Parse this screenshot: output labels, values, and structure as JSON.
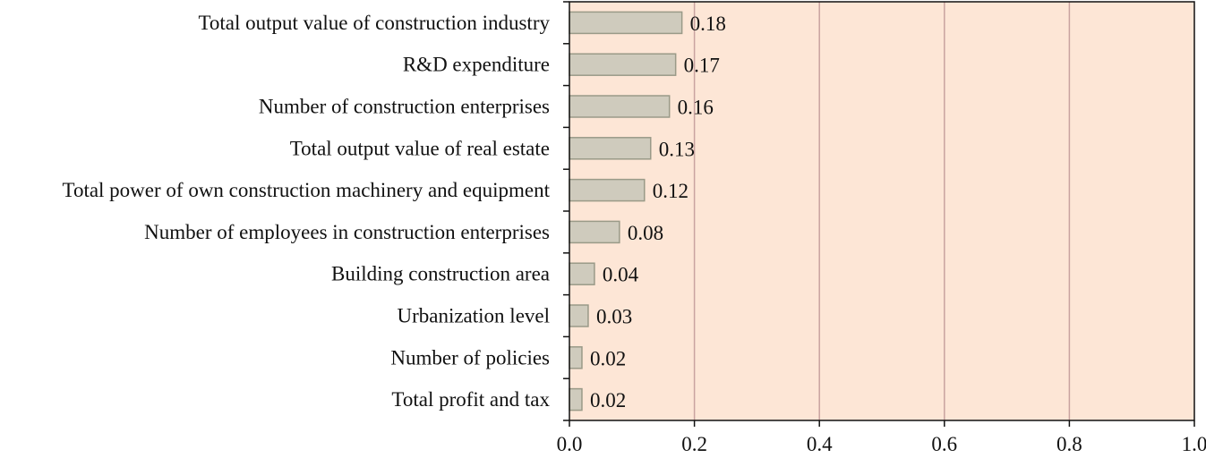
{
  "chart_data": {
    "type": "bar",
    "orientation": "horizontal",
    "title": "",
    "xlabel": "",
    "ylabel": "",
    "categories": [
      "Total output value of construction industry",
      "R&D expenditure",
      "Number of construction enterprises",
      "Total output value of real estate",
      "Total power of own construction machinery and equipment",
      "Number of employees in construction enterprises",
      "Building construction area",
      "Urbanization level",
      "Number of policies",
      "Total profit and tax"
    ],
    "values": [
      0.18,
      0.17,
      0.16,
      0.13,
      0.12,
      0.08,
      0.04,
      0.03,
      0.02,
      0.02
    ],
    "value_labels": [
      "0.18",
      "0.17",
      "0.16",
      "0.13",
      "0.12",
      "0.08",
      "0.04",
      "0.03",
      "0.02",
      "0.02"
    ],
    "xlim": [
      0,
      1.0
    ],
    "xticks": [
      0.0,
      0.2,
      0.4,
      0.6,
      0.8,
      1.0
    ],
    "xtick_labels": [
      "0.0",
      "0.2",
      "0.4",
      "0.6",
      "0.8",
      "1.0"
    ],
    "grid": true,
    "colors": {
      "plot_background": "#fde6d6",
      "bar_fill": "#cfcbbd",
      "bar_stroke": "#9a9a88",
      "gridline": "#c9a3a0",
      "axis": "#111111"
    }
  }
}
